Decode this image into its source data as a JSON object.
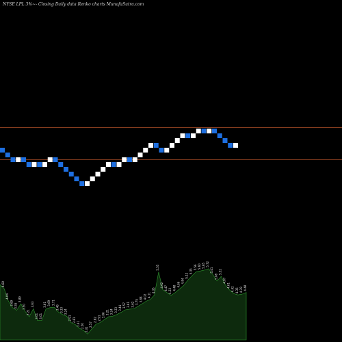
{
  "header": {
    "title": "NYSE LPL  3%~-  Closing Daily data  Renko  charts MunafaSutra.com"
  },
  "colors": {
    "background": "#000000",
    "up_brick": "#ffffff",
    "down_brick": "#1e6fe0",
    "level_line": "#b5522a",
    "volume_fill": "#0d2a0d",
    "volume_edge": "#2f9a2f"
  },
  "chart_data": {
    "type": "renko",
    "brick_size_label": "3%",
    "direction": [
      "down",
      "down",
      "down",
      "up",
      "down",
      "down",
      "up",
      "down",
      "up",
      "up",
      "down",
      "down",
      "down",
      "down",
      "down",
      "down",
      "up",
      "up",
      "up",
      "up",
      "up",
      "down",
      "up",
      "up",
      "down",
      "up",
      "up",
      "up",
      "up",
      "down",
      "down",
      "up",
      "up",
      "up",
      "up",
      "down",
      "up",
      "up",
      "down",
      "up",
      "down",
      "down",
      "down",
      "down",
      "up"
    ],
    "level_lines": [
      "upper",
      "lower"
    ],
    "volume_labels": [
      "4.89",
      "4.68",
      "4.04",
      "3.69",
      "3.55",
      "3.89",
      "3.50",
      "3.21",
      "3.63",
      "3.01",
      "3.01",
      "3.61",
      "3.69",
      "3.71",
      "3.46",
      "3.33",
      "3.24",
      "2.91",
      "2.81",
      "2.61",
      "2.50",
      "2.31",
      "2.57",
      "2.82",
      "2.91",
      "3.06",
      "3.21",
      "3.24",
      "3.33",
      "3.44",
      "3.57",
      "3.61",
      "3.62",
      "3.75",
      "3.88",
      "4.02",
      "4.11",
      "4.35",
      "5.55",
      "4.62",
      "4.47",
      "4.33",
      "4.48",
      "4.66",
      "4.84",
      "5.12",
      "5.35",
      "5.56",
      "5.60",
      "5.65",
      "5.72",
      "5.41",
      "5.08",
      "5.32",
      "4.87",
      "4.61",
      "4.42",
      "4.35",
      "4.39",
      "4.48"
    ]
  }
}
